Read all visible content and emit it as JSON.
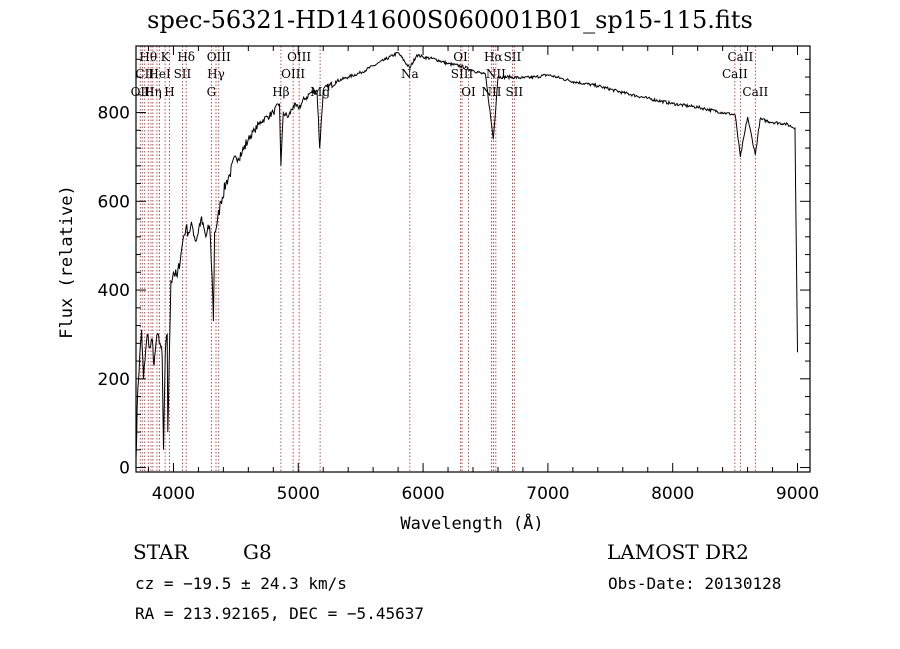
{
  "header": {
    "title": "spec-56321-HD141600S060001B01_sp15-115.fits"
  },
  "info": {
    "class_label": "STAR",
    "subclass": "G8",
    "survey": "LAMOST DR2",
    "cz": "cz = −19.5 ± 24.3 km/s",
    "obs_date": "Obs-Date: 20130128",
    "coords": "RA = 213.92165, DEC =  −5.45637"
  },
  "chart_data": {
    "type": "line",
    "title": "spec-56321-HD141600S060001B01_sp15-115.fits",
    "xlabel": "Wavelength (Å)",
    "ylabel": "Flux (relative)",
    "xlim": [
      3700,
      9100
    ],
    "ylim": [
      -10,
      950
    ],
    "xticks": [
      4000,
      5000,
      6000,
      7000,
      8000,
      9000
    ],
    "yticks": [
      0,
      200,
      400,
      600,
      800
    ],
    "grid": false,
    "series": [
      {
        "x": [
          3700,
          3715,
          3730,
          3745,
          3760,
          3790,
          3810,
          3830,
          3845,
          3860,
          3880,
          3900,
          3910,
          3920,
          3935,
          3950,
          3955,
          3970,
          3980,
          4000,
          4030,
          4060,
          4080,
          4100,
          4120,
          4150,
          4180,
          4220,
          4260,
          4290,
          4310,
          4320,
          4330,
          4350,
          4380,
          4420,
          4450,
          4500,
          4550,
          4600,
          4650,
          4700,
          4750,
          4800,
          4850,
          4861,
          4880,
          4920,
          4960,
          5000,
          5050,
          5100,
          5150,
          5172,
          5200,
          5300,
          5400,
          5500,
          5600,
          5700,
          5800,
          5893,
          5950,
          6000,
          6100,
          6200,
          6300,
          6400,
          6500,
          6563,
          6600,
          6700,
          6800,
          6900,
          7000,
          7200,
          7400,
          7600,
          7800,
          8000,
          8200,
          8400,
          8500,
          8542,
          8600,
          8662,
          8700,
          8800,
          8900,
          8980,
          8990,
          9000
        ],
        "y": [
          20,
          180,
          250,
          310,
          200,
          300,
          270,
          290,
          230,
          280,
          300,
          270,
          250,
          40,
          260,
          300,
          80,
          290,
          420,
          440,
          430,
          480,
          520,
          540,
          530,
          545,
          510,
          560,
          520,
          545,
          430,
          330,
          530,
          550,
          600,
          640,
          660,
          700,
          710,
          740,
          760,
          780,
          790,
          800,
          820,
          680,
          800,
          790,
          815,
          810,
          830,
          845,
          850,
          720,
          850,
          870,
          880,
          890,
          905,
          920,
          935,
          900,
          930,
          925,
          920,
          910,
          905,
          895,
          885,
          740,
          880,
          880,
          878,
          880,
          885,
          870,
          860,
          845,
          832,
          820,
          812,
          800,
          795,
          700,
          790,
          705,
          785,
          778,
          775,
          765,
          500,
          260
        ]
      }
    ],
    "lines": [
      {
        "wl": 3734,
        "label": "OII",
        "row": 2
      },
      {
        "wl": 3750,
        "label": "",
        "row": -1
      },
      {
        "wl": 3770,
        "label": "CII",
        "row": 1
      },
      {
        "wl": 3798,
        "label": "Hθ",
        "row": 0
      },
      {
        "wl": 3820,
        "label": "",
        "row": -1
      },
      {
        "wl": 3835,
        "label": "Hη",
        "row": 2
      },
      {
        "wl": 3868,
        "label": "",
        "row": -1
      },
      {
        "wl": 3889,
        "label": "HeI",
        "row": 1
      },
      {
        "wl": 3933,
        "label": "K",
        "row": 0
      },
      {
        "wl": 3968,
        "label": "H",
        "row": 2
      },
      {
        "wl": 4072,
        "label": "SII",
        "row": 1
      },
      {
        "wl": 4102,
        "label": "Hδ",
        "row": 0
      },
      {
        "wl": 4304,
        "label": "G",
        "row": 2
      },
      {
        "wl": 4341,
        "label": "Hγ",
        "row": 1
      },
      {
        "wl": 4363,
        "label": "OIII",
        "row": 0
      },
      {
        "wl": 4861,
        "label": "Hβ",
        "row": 2
      },
      {
        "wl": 4959,
        "label": "OIII",
        "row": 1
      },
      {
        "wl": 5007,
        "label": "OIII",
        "row": 0
      },
      {
        "wl": 5175,
        "label": "Mg",
        "row": 2
      },
      {
        "wl": 5894,
        "label": "Na",
        "row": 1
      },
      {
        "wl": 6300,
        "label": "OI",
        "row": 0
      },
      {
        "wl": 6312,
        "label": "SIII",
        "row": 1
      },
      {
        "wl": 6364,
        "label": "OI",
        "row": 2
      },
      {
        "wl": 6548,
        "label": "NII",
        "row": 2
      },
      {
        "wl": 6563,
        "label": "Hα",
        "row": 0
      },
      {
        "wl": 6583,
        "label": "NII",
        "row": 1
      },
      {
        "wl": 6716,
        "label": "SII",
        "row": 0
      },
      {
        "wl": 6731,
        "label": "SII",
        "row": 2
      },
      {
        "wl": 8498,
        "label": "CaII",
        "row": 1
      },
      {
        "wl": 8542,
        "label": "CaII",
        "row": 0
      },
      {
        "wl": 8662,
        "label": "CaII",
        "row": 2
      }
    ]
  }
}
